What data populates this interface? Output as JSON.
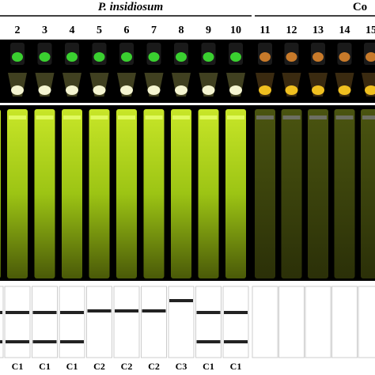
{
  "header": {
    "title": "P. insidiosum",
    "control_title": "Co"
  },
  "lanes": [
    {
      "number": "2",
      "group": "C1"
    },
    {
      "number": "3",
      "group": "C1"
    },
    {
      "number": "4",
      "group": "C1"
    },
    {
      "number": "5",
      "group": "C2"
    },
    {
      "number": "6",
      "group": "C2"
    },
    {
      "number": "7",
      "group": "C2"
    },
    {
      "number": "8",
      "group": "C3"
    },
    {
      "number": "9",
      "group": "C1"
    },
    {
      "number": "10",
      "group": "C1"
    },
    {
      "number": "11"
    },
    {
      "number": "12"
    },
    {
      "number": "13"
    },
    {
      "number": "14"
    },
    {
      "number": "15"
    }
  ]
}
